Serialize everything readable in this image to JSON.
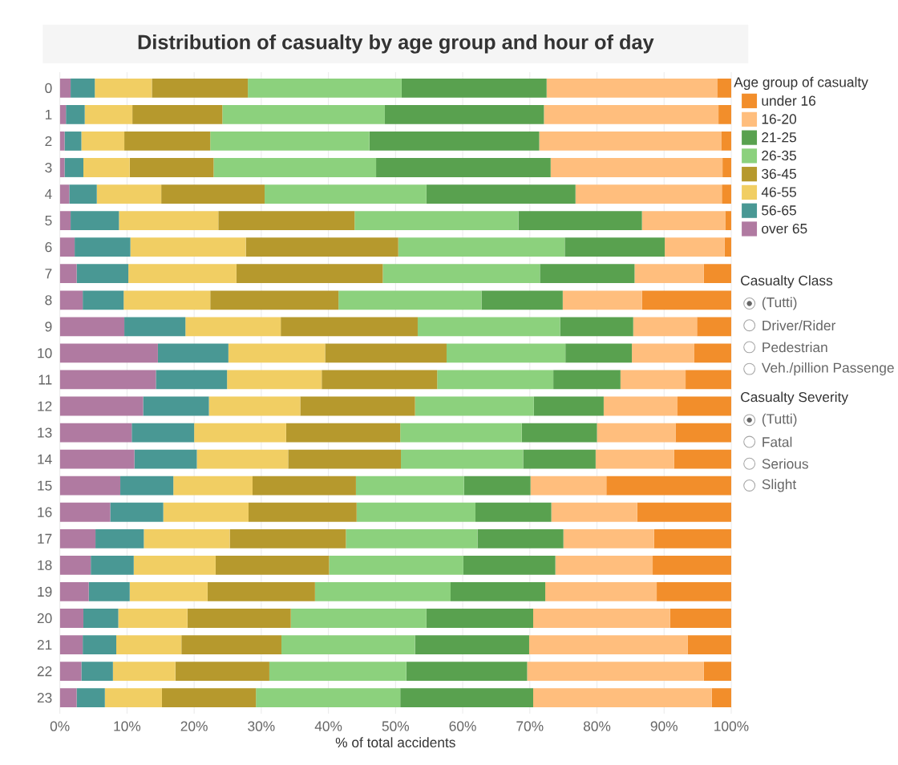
{
  "chart_data": {
    "type": "bar",
    "orientation": "horizontal",
    "stacked": true,
    "title": "Distribution of casualty by age group and hour of day",
    "xlabel": "% of total accidents",
    "legend_title": "Age group of casualty",
    "categories": [
      "0",
      "1",
      "2",
      "3",
      "4",
      "5",
      "6",
      "7",
      "8",
      "9",
      "10",
      "11",
      "12",
      "13",
      "14",
      "15",
      "16",
      "17",
      "18",
      "19",
      "20",
      "21",
      "22",
      "23"
    ],
    "series": [
      {
        "name": "over 65",
        "color": "#b07aa1",
        "values": [
          1.6,
          0.9,
          0.7,
          0.7,
          1.4,
          1.6,
          2.2,
          2.5,
          3.4,
          9.6,
          14.6,
          14.3,
          12.4,
          10.7,
          11.1,
          9.0,
          7.5,
          5.3,
          4.6,
          4.3,
          3.5,
          3.4,
          3.2,
          2.5
        ]
      },
      {
        "name": "56-65",
        "color": "#499894",
        "values": [
          3.6,
          2.8,
          2.5,
          2.8,
          4.1,
          7.2,
          8.3,
          7.7,
          6.1,
          9.1,
          10.5,
          10.6,
          9.8,
          9.3,
          9.3,
          7.9,
          7.9,
          7.2,
          6.4,
          6.1,
          5.2,
          5.0,
          4.7,
          4.2
        ]
      },
      {
        "name": "46-55",
        "color": "#f1ce63",
        "values": [
          8.5,
          7.1,
          6.4,
          6.9,
          9.6,
          14.8,
          17.2,
          16.1,
          12.9,
          14.2,
          14.4,
          14.1,
          13.6,
          13.7,
          13.6,
          11.8,
          12.7,
          12.8,
          12.2,
          11.6,
          10.3,
          9.7,
          9.3,
          8.5
        ]
      },
      {
        "name": "36-45",
        "color": "#b6992d",
        "values": [
          14.3,
          13.4,
          12.8,
          12.5,
          15.4,
          20.3,
          22.7,
          21.8,
          19.1,
          20.4,
          18.1,
          17.2,
          17.1,
          17.0,
          16.8,
          15.4,
          16.1,
          17.3,
          16.9,
          16.0,
          15.4,
          14.9,
          14.0,
          14.0
        ]
      },
      {
        "name": "26-35",
        "color": "#8cd17d",
        "values": [
          22.9,
          24.2,
          23.7,
          24.2,
          24.1,
          24.4,
          24.8,
          23.4,
          21.3,
          21.2,
          17.7,
          17.3,
          17.7,
          18.1,
          18.2,
          16.1,
          17.7,
          19.6,
          20.0,
          20.2,
          20.2,
          19.9,
          20.4,
          21.5
        ]
      },
      {
        "name": "21-25",
        "color": "#59a14f",
        "values": [
          21.6,
          23.7,
          25.3,
          26.0,
          22.2,
          18.4,
          14.9,
          14.1,
          12.1,
          10.9,
          9.9,
          10.0,
          10.4,
          11.2,
          10.8,
          9.9,
          11.3,
          12.8,
          13.7,
          14.1,
          15.9,
          17.0,
          18.0,
          19.8
        ]
      },
      {
        "name": "16-20",
        "color": "#ffbe7d",
        "values": [
          25.4,
          26.0,
          27.1,
          25.6,
          21.8,
          12.4,
          8.9,
          10.3,
          11.8,
          9.5,
          9.3,
          9.7,
          11.0,
          11.7,
          11.7,
          11.3,
          12.8,
          13.5,
          14.5,
          16.6,
          20.4,
          23.6,
          26.3,
          26.6
        ]
      },
      {
        "name": "under 16",
        "color": "#f28e2b",
        "values": [
          2.1,
          1.9,
          1.5,
          1.3,
          1.4,
          0.9,
          1.0,
          4.1,
          13.3,
          5.1,
          5.5,
          6.8,
          8.0,
          8.3,
          8.5,
          18.6,
          14.0,
          11.5,
          11.7,
          11.1,
          9.1,
          6.5,
          4.1,
          2.9
        ]
      }
    ],
    "xlim": [
      0,
      100
    ],
    "xticks": [
      {
        "value": 0,
        "label": "0%"
      },
      {
        "value": 10,
        "label": "10%"
      },
      {
        "value": 20,
        "label": "20%"
      },
      {
        "value": 30,
        "label": "30%"
      },
      {
        "value": 40,
        "label": "40%"
      },
      {
        "value": 50,
        "label": "50%"
      },
      {
        "value": 60,
        "label": "60%"
      },
      {
        "value": 70,
        "label": "70%"
      },
      {
        "value": 80,
        "label": "80%"
      },
      {
        "value": 90,
        "label": "90%"
      },
      {
        "value": 100,
        "label": "100%"
      }
    ],
    "grid": "x",
    "legend": "right",
    "annotations": [
      "Casualty Class",
      "(Tutti)",
      "Driver/Rider",
      "Pedestrian",
      "Veh./pillion Passenge",
      "Casualty Severity",
      "(Tutti)",
      "Fatal",
      "Serious",
      "Slight"
    ]
  }
}
